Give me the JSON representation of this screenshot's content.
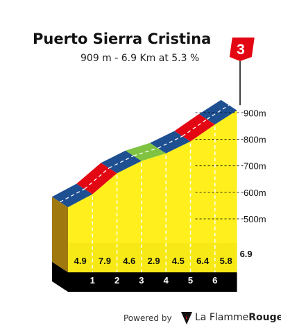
{
  "header": {
    "title": "Puerto Sierra Cristina",
    "subtitle": "909 m - 6.9 Km at 5.3 %"
  },
  "summit_flag": {
    "label": "3",
    "color": "#e30613"
  },
  "footer": {
    "powered_by": "Powered by",
    "brand_part1": "La Flamme",
    "brand_part2": "Rouge"
  },
  "colors": {
    "face": "#ffef1d",
    "base": "#000000",
    "side": "#a07810",
    "easy": "#1d4f91",
    "medium": "#80c342",
    "hard": "#e30613"
  },
  "chart_data": {
    "type": "area",
    "x_unit": "km",
    "y_unit": "m",
    "total_distance_km": 6.9,
    "summit_altitude_m": 909,
    "y_ticks": [
      {
        "value": 500,
        "label": "500m"
      },
      {
        "value": 600,
        "label": "600m"
      },
      {
        "value": 700,
        "label": "700m"
      },
      {
        "value": 800,
        "label": "800m"
      },
      {
        "value": 900,
        "label": "900m"
      }
    ],
    "km_labels": [
      "1",
      "2",
      "3",
      "4",
      "5",
      "6",
      "6.9"
    ],
    "segments": [
      {
        "km_start": 0,
        "km_end": 1,
        "gradient": 4.9,
        "label": "4.9",
        "difficulty": "easy",
        "alt_start": 544,
        "alt_end": 593
      },
      {
        "km_start": 1,
        "km_end": 2,
        "gradient": 7.9,
        "label": "7.9",
        "difficulty": "hard",
        "alt_start": 593,
        "alt_end": 672
      },
      {
        "km_start": 2,
        "km_end": 3,
        "gradient": 4.6,
        "label": "4.6",
        "difficulty": "easy",
        "alt_start": 672,
        "alt_end": 718
      },
      {
        "km_start": 3,
        "km_end": 4,
        "gradient": 2.9,
        "label": "2.9",
        "difficulty": "medium",
        "alt_start": 718,
        "alt_end": 747
      },
      {
        "km_start": 4,
        "km_end": 5,
        "gradient": 4.5,
        "label": "4.5",
        "difficulty": "easy",
        "alt_start": 747,
        "alt_end": 792
      },
      {
        "km_start": 5,
        "km_end": 6,
        "gradient": 6.4,
        "label": "6.4",
        "difficulty": "hard",
        "alt_start": 792,
        "alt_end": 856
      },
      {
        "km_start": 6,
        "km_end": 6.9,
        "gradient": 5.8,
        "label": "5.8",
        "difficulty": "easy",
        "alt_start": 856,
        "alt_end": 909
      }
    ]
  }
}
